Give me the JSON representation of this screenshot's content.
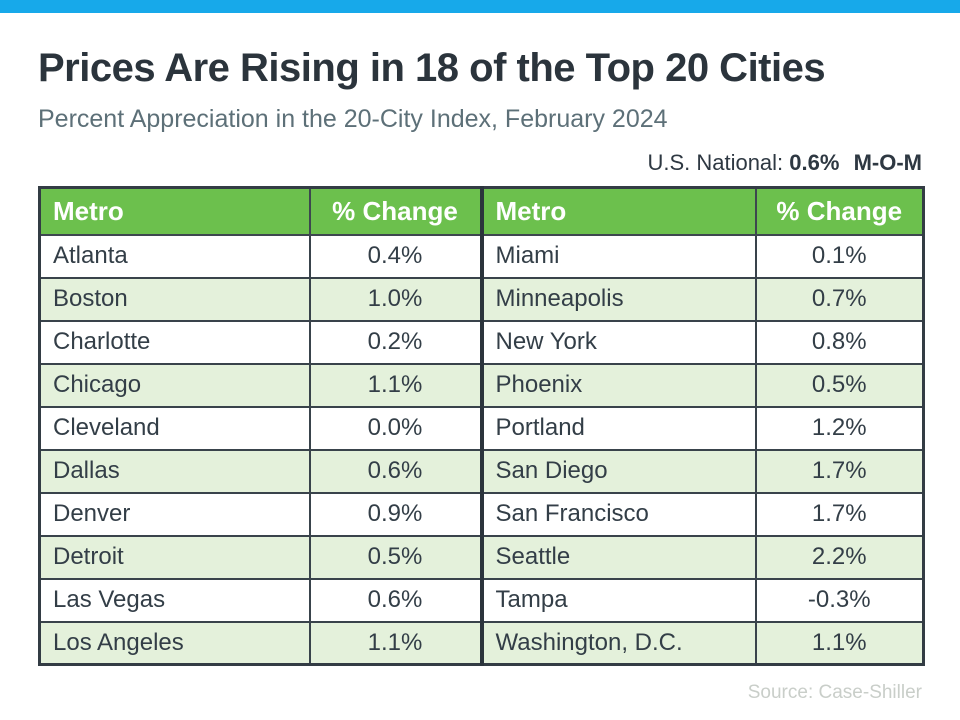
{
  "header": {
    "title": "Prices Are Rising in 18 of the Top 20 Cities",
    "subtitle": "Percent Appreciation in the 20-City Index, February 2024",
    "national": {
      "label": "U.S. National:",
      "value": "0.6%",
      "period": "M-O-M"
    }
  },
  "footer": {
    "source": "Source: Case-Shiller"
  },
  "colors": {
    "accent_blue": "#17a9ea",
    "header_green": "#6cc04d",
    "row_stripe_green": "#e4f1db",
    "title_dark": "#2b343c",
    "subtitle_gray": "#5d7078",
    "table_text": "#333e47",
    "source_gray": "#c9cec9"
  },
  "chart_data": {
    "type": "table",
    "title": "Prices Are Rising in 18 of the Top 20 Cities",
    "subtitle": "Percent Appreciation in the 20-City Index, February 2024",
    "national_mom_change": "0.6%",
    "source": "Case-Shiller",
    "columns": [
      "Metro",
      "% Change",
      "Metro",
      "% Change"
    ],
    "rows": [
      [
        "Atlanta",
        "0.4%",
        "Miami",
        "0.1%"
      ],
      [
        "Boston",
        "1.0%",
        "Minneapolis",
        "0.7%"
      ],
      [
        "Charlotte",
        "0.2%",
        "New York",
        "0.8%"
      ],
      [
        "Chicago",
        "1.1%",
        "Phoenix",
        "0.5%"
      ],
      [
        "Cleveland",
        "0.0%",
        "Portland",
        "1.2%"
      ],
      [
        "Dallas",
        "0.6%",
        "San Diego",
        "1.7%"
      ],
      [
        "Denver",
        "0.9%",
        "San Francisco",
        "1.7%"
      ],
      [
        "Detroit",
        "0.5%",
        "Seattle",
        "2.2%"
      ],
      [
        "Las Vegas",
        "0.6%",
        "Tampa",
        "-0.3%"
      ],
      [
        "Los Angeles",
        "1.1%",
        "Washington, D.C.",
        "1.1%"
      ]
    ]
  }
}
